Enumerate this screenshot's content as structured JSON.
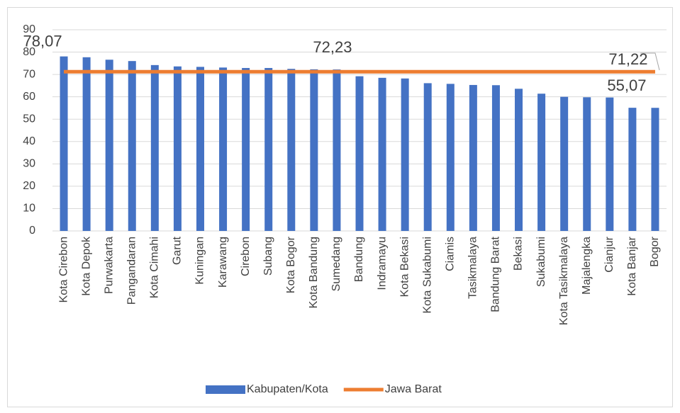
{
  "chart_data": {
    "type": "bar",
    "categories": [
      "Kota Cirebon",
      "Kota Depok",
      "Purwakarta",
      "Pangandaran",
      "Kota Cimahi",
      "Garut",
      "Kuningan",
      "Karawang",
      "Cirebon",
      "Subang",
      "Kota Bogor",
      "Kota Bandung",
      "Sumedang",
      "Bandung",
      "Indramayu",
      "Kota Bekasi",
      "Kota Sukabumi",
      "Ciamis",
      "Tasikmalaya",
      "Bandung Barat",
      "Bekasi",
      "Sukabumi",
      "Kota Tasikmalaya",
      "Majalengka",
      "Cianjur",
      "Kota Banjar",
      "Bogor"
    ],
    "series": [
      {
        "name": "Kabupaten/Kota",
        "type": "bar",
        "color": "#4472c4",
        "values": [
          78.07,
          77.7,
          76.6,
          76.0,
          74.2,
          73.6,
          73.4,
          73.1,
          72.9,
          72.9,
          72.5,
          72.3,
          72.23,
          69.2,
          68.5,
          68.2,
          66.1,
          65.8,
          65.3,
          65.2,
          63.6,
          61.4,
          60.0,
          59.8,
          59.7,
          55.1,
          55.07
        ],
        "value_labels": [
          "78,07",
          null,
          null,
          null,
          null,
          null,
          null,
          null,
          null,
          null,
          null,
          null,
          "72,23",
          null,
          null,
          null,
          null,
          null,
          null,
          null,
          null,
          null,
          null,
          null,
          null,
          null,
          "55,07"
        ]
      },
      {
        "name": "Jawa Barat",
        "type": "line",
        "color": "#ed7d31",
        "values": [
          71.22,
          71.22,
          71.22,
          71.22,
          71.22,
          71.22,
          71.22,
          71.22,
          71.22,
          71.22,
          71.22,
          71.22,
          71.22,
          71.22,
          71.22,
          71.22,
          71.22,
          71.22,
          71.22,
          71.22,
          71.22,
          71.22,
          71.22,
          71.22,
          71.22,
          71.22,
          71.22
        ],
        "value_labels": [
          null,
          null,
          null,
          null,
          null,
          null,
          null,
          null,
          null,
          null,
          null,
          null,
          null,
          null,
          null,
          null,
          null,
          null,
          null,
          null,
          null,
          null,
          null,
          null,
          null,
          null,
          "71,22"
        ]
      }
    ],
    "ylim": [
      0,
      90
    ],
    "yticks": [
      0,
      10,
      20,
      30,
      40,
      50,
      60,
      70,
      80,
      90
    ],
    "grid": true,
    "legend": "bottom"
  }
}
